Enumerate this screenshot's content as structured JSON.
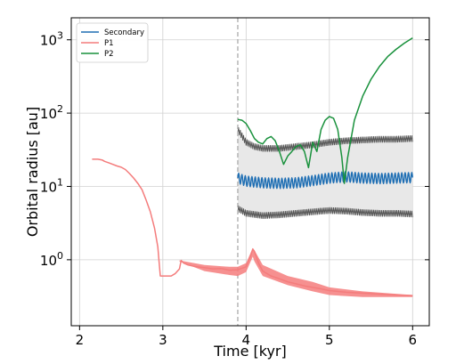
{
  "chart_data": {
    "type": "line",
    "xlabel": "Time [kyr]",
    "ylabel": "Orbital radius [au]",
    "xlim": [
      1.9,
      6.2
    ],
    "ylim_log10": [
      -0.9,
      3.3
    ],
    "yscale": "log",
    "grid": true,
    "x_ticks": [
      "2",
      "3",
      "4",
      "5",
      "6"
    ],
    "y_ticks": [
      {
        "base": "10",
        "exp": "0",
        "value": 1
      },
      {
        "base": "10",
        "exp": "1",
        "value": 10
      },
      {
        "base": "10",
        "exp": "2",
        "value": 100
      },
      {
        "base": "10",
        "exp": "3",
        "value": 1000
      }
    ],
    "legend_position": "top-left",
    "vline": {
      "x": 3.9,
      "style": "dashed",
      "color": "#aaaaaa"
    },
    "series": [
      {
        "name": "Secondary",
        "color": "#1f6fb4",
        "oscillation_amplitude_dex": 0.07,
        "oscillation_period_kyr": 0.04,
        "points": [
          [
            3.9,
            13
          ],
          [
            4.0,
            11.8
          ],
          [
            4.2,
            11.2
          ],
          [
            4.4,
            11
          ],
          [
            4.6,
            11.2
          ],
          [
            4.8,
            12
          ],
          [
            5.0,
            13
          ],
          [
            5.2,
            13.5
          ],
          [
            5.4,
            13
          ],
          [
            5.6,
            12.8
          ],
          [
            5.8,
            13
          ],
          [
            6.0,
            13.2
          ]
        ]
      },
      {
        "name": "P1",
        "color": "#f47c7c",
        "points": [
          [
            2.15,
            23.5
          ],
          [
            2.22,
            23.5
          ],
          [
            2.27,
            23
          ],
          [
            2.3,
            22
          ],
          [
            2.35,
            21
          ],
          [
            2.4,
            20
          ],
          [
            2.45,
            19
          ],
          [
            2.5,
            18.3
          ],
          [
            2.55,
            17
          ],
          [
            2.6,
            15
          ],
          [
            2.65,
            13
          ],
          [
            2.7,
            11
          ],
          [
            2.75,
            9
          ],
          [
            2.8,
            6.5
          ],
          [
            2.85,
            4.5
          ],
          [
            2.9,
            2.7
          ],
          [
            2.94,
            1.5
          ],
          [
            2.96,
            0.8
          ],
          [
            2.97,
            0.6
          ],
          [
            3.05,
            0.6
          ],
          [
            3.1,
            0.6
          ],
          [
            3.15,
            0.65
          ],
          [
            3.2,
            0.75
          ],
          [
            3.22,
            0.98
          ],
          [
            3.25,
            0.9
          ],
          [
            3.3,
            0.85
          ],
          [
            3.4,
            0.8
          ],
          [
            3.5,
            0.78
          ],
          [
            3.6,
            0.75
          ],
          [
            3.7,
            0.76
          ],
          [
            3.8,
            0.72
          ],
          [
            3.9,
            0.73
          ],
          [
            4.0,
            0.8
          ],
          [
            4.05,
            1.1
          ],
          [
            4.08,
            1.4
          ],
          [
            4.1,
            1.3
          ],
          [
            4.15,
            0.9
          ],
          [
            4.2,
            0.7
          ],
          [
            4.3,
            0.6
          ],
          [
            4.4,
            0.55
          ],
          [
            4.5,
            0.5
          ],
          [
            4.6,
            0.47
          ],
          [
            4.7,
            0.44
          ],
          [
            4.8,
            0.42
          ],
          [
            4.9,
            0.4
          ],
          [
            5.0,
            0.38
          ],
          [
            5.2,
            0.36
          ],
          [
            5.4,
            0.35
          ],
          [
            5.6,
            0.34
          ],
          [
            5.8,
            0.33
          ],
          [
            6.0,
            0.325
          ]
        ],
        "band_top": [
          [
            3.2,
            0.98
          ],
          [
            3.5,
            0.85
          ],
          [
            3.8,
            0.8
          ],
          [
            3.9,
            0.8
          ],
          [
            4.0,
            0.9
          ],
          [
            4.08,
            1.45
          ],
          [
            4.1,
            1.35
          ],
          [
            4.2,
            0.85
          ],
          [
            4.5,
            0.6
          ],
          [
            4.8,
            0.5
          ],
          [
            5.0,
            0.42
          ],
          [
            5.4,
            0.37
          ],
          [
            6.0,
            0.33
          ]
        ],
        "band_bottom": [
          [
            3.2,
            0.95
          ],
          [
            3.5,
            0.7
          ],
          [
            3.8,
            0.62
          ],
          [
            3.9,
            0.6
          ],
          [
            4.0,
            0.68
          ],
          [
            4.08,
            1.1
          ],
          [
            4.1,
            0.95
          ],
          [
            4.2,
            0.6
          ],
          [
            4.5,
            0.45
          ],
          [
            4.8,
            0.37
          ],
          [
            5.0,
            0.33
          ],
          [
            5.4,
            0.31
          ],
          [
            6.0,
            0.31
          ]
        ]
      },
      {
        "name": "P2",
        "color": "#19913c",
        "points": [
          [
            3.9,
            82
          ],
          [
            3.95,
            80
          ],
          [
            4.0,
            72
          ],
          [
            4.05,
            58
          ],
          [
            4.1,
            45
          ],
          [
            4.15,
            40
          ],
          [
            4.2,
            38
          ],
          [
            4.25,
            45
          ],
          [
            4.3,
            48
          ],
          [
            4.35,
            42
          ],
          [
            4.4,
            30
          ],
          [
            4.45,
            20
          ],
          [
            4.5,
            26
          ],
          [
            4.55,
            30
          ],
          [
            4.6,
            35
          ],
          [
            4.65,
            37
          ],
          [
            4.7,
            30
          ],
          [
            4.75,
            18
          ],
          [
            4.8,
            40
          ],
          [
            4.85,
            30
          ],
          [
            4.9,
            60
          ],
          [
            4.95,
            80
          ],
          [
            5.0,
            90
          ],
          [
            5.05,
            85
          ],
          [
            5.1,
            60
          ],
          [
            5.15,
            25
          ],
          [
            5.18,
            11
          ],
          [
            5.22,
            25
          ],
          [
            5.3,
            80
          ],
          [
            5.4,
            170
          ],
          [
            5.5,
            290
          ],
          [
            5.6,
            430
          ],
          [
            5.7,
            590
          ],
          [
            5.8,
            740
          ],
          [
            5.9,
            900
          ],
          [
            6.0,
            1060
          ]
        ]
      }
    ],
    "bands": [
      {
        "fill": "#e8e8e8",
        "edge": "#555555",
        "upper": [
          [
            3.9,
            60
          ],
          [
            4.0,
            40
          ],
          [
            4.1,
            35
          ],
          [
            4.2,
            33
          ],
          [
            4.4,
            33
          ],
          [
            4.6,
            35
          ],
          [
            4.8,
            37
          ],
          [
            5.0,
            40
          ],
          [
            5.2,
            42
          ],
          [
            5.4,
            43
          ],
          [
            5.6,
            44
          ],
          [
            5.8,
            44
          ],
          [
            6.0,
            45
          ]
        ],
        "lower": [
          [
            3.9,
            5
          ],
          [
            4.0,
            4.3
          ],
          [
            4.2,
            4.0
          ],
          [
            4.4,
            4.1
          ],
          [
            4.6,
            4.3
          ],
          [
            4.8,
            4.5
          ],
          [
            5.0,
            4.7
          ],
          [
            5.2,
            4.6
          ],
          [
            5.4,
            4.4
          ],
          [
            5.6,
            4.3
          ],
          [
            5.8,
            4.3
          ],
          [
            6.0,
            4.2
          ]
        ]
      }
    ]
  }
}
